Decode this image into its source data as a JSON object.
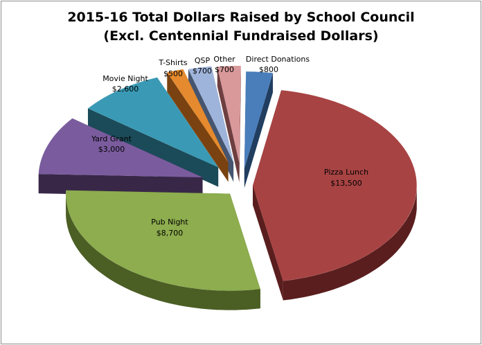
{
  "chart_data": {
    "type": "pie",
    "variant": "3d-exploded",
    "title": "2015-16 Total Dollars Raised by School Council",
    "subtitle": "(Excl. Centennial Fundraised Dollars)",
    "legend": "none",
    "currency_symbol": "$",
    "slices": [
      {
        "name": "Pizza Lunch",
        "value": 13500,
        "value_label": "$13,500",
        "color": "#A84343",
        "side": "#5A1E1E"
      },
      {
        "name": "Pub Night",
        "value": 8700,
        "value_label": "$8,700",
        "color": "#8DAD4E",
        "side": "#4B5E24"
      },
      {
        "name": "Yard Grant",
        "value": 3000,
        "value_label": "$3,000",
        "color": "#7A5C9E",
        "side": "#392748"
      },
      {
        "name": "Movie Night",
        "value": 2600,
        "value_label": "$2,600",
        "color": "#3A9AB5",
        "side": "#1B4A58"
      },
      {
        "name": "T-Shirts",
        "value": 500,
        "value_label": "$500",
        "color": "#E58A2E",
        "side": "#7A4210"
      },
      {
        "name": "QSP",
        "value": 700,
        "value_label": "$700",
        "color": "#9FB4DB",
        "side": "#46556F"
      },
      {
        "name": "Other",
        "value": 700,
        "value_label": "$700",
        "color": "#D9989A",
        "side": "#6E3F40"
      },
      {
        "name": "Direct Donations",
        "value": 800,
        "value_label": "$800",
        "color": "#4A7EBB",
        "side": "#213E60"
      }
    ]
  }
}
